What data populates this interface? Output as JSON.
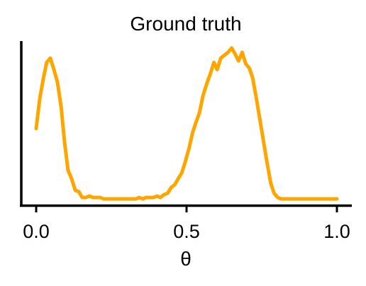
{
  "chart_data": {
    "type": "line",
    "title": "Ground truth",
    "xlabel": "θ",
    "ylabel": "",
    "xlim": [
      0.0,
      1.0
    ],
    "ylim": [
      0,
      1
    ],
    "xticks": [
      {
        "value": 0.0,
        "label": "0.0"
      },
      {
        "value": 0.5,
        "label": "0.5"
      },
      {
        "value": 1.0,
        "label": "1.0"
      }
    ],
    "yticks": [],
    "grid": false,
    "line_color": "#FFA500",
    "series": [
      {
        "x": [
          0.0,
          0.012,
          0.024,
          0.035,
          0.047,
          0.059,
          0.071,
          0.083,
          0.094,
          0.106,
          0.118,
          0.13,
          0.142,
          0.153,
          0.165,
          0.177,
          0.189,
          0.201,
          0.213,
          0.224,
          0.236,
          0.248,
          0.26,
          0.272,
          0.283,
          0.295,
          0.307,
          0.319,
          0.331,
          0.343,
          0.354,
          0.366,
          0.378,
          0.39,
          0.402,
          0.413,
          0.425,
          0.437,
          0.449,
          0.461,
          0.472,
          0.484,
          0.496,
          0.508,
          0.52,
          0.531,
          0.543,
          0.555,
          0.567,
          0.579,
          0.591,
          0.602,
          0.614,
          0.626,
          0.638,
          0.65,
          0.661,
          0.673,
          0.685,
          0.697,
          0.709,
          0.72,
          0.732,
          0.744,
          0.756,
          0.768,
          0.78,
          0.791,
          0.803,
          0.815,
          0.827,
          0.839,
          0.85,
          0.862,
          0.874,
          0.886,
          0.898,
          0.909,
          0.921,
          0.933,
          0.945,
          0.957,
          0.969,
          0.98,
          1.0
        ],
        "y": [
          0.49,
          0.7,
          0.84,
          0.95,
          0.98,
          0.9,
          0.81,
          0.64,
          0.4,
          0.2,
          0.14,
          0.06,
          0.05,
          0.01,
          0.01,
          0.02,
          0.01,
          0.01,
          0.01,
          0.0,
          0.0,
          0.0,
          0.0,
          0.0,
          0.0,
          0.0,
          0.0,
          0.0,
          0.0,
          0.01,
          0.0,
          0.01,
          0.01,
          0.01,
          0.02,
          0.01,
          0.03,
          0.04,
          0.08,
          0.1,
          0.14,
          0.18,
          0.26,
          0.35,
          0.46,
          0.53,
          0.6,
          0.72,
          0.8,
          0.87,
          0.95,
          0.9,
          0.98,
          1.0,
          1.02,
          1.05,
          1.01,
          0.96,
          1.02,
          0.94,
          0.91,
          0.84,
          0.7,
          0.55,
          0.4,
          0.25,
          0.11,
          0.04,
          0.01,
          0.0,
          0.0,
          0.0,
          0.0,
          0.0,
          0.0,
          0.0,
          0.0,
          0.0,
          0.0,
          0.0,
          0.0,
          0.0,
          0.0,
          0.0,
          0.0
        ]
      }
    ]
  }
}
